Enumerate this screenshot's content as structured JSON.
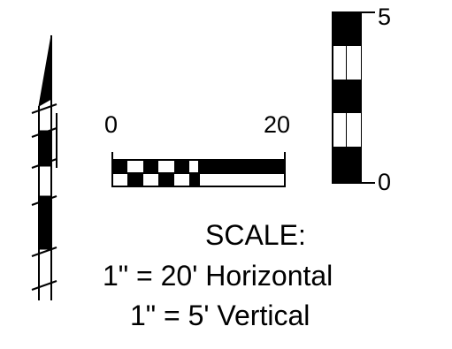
{
  "horizontal_bar": {
    "start_label": "0",
    "end_label": "20"
  },
  "vertical_bar": {
    "top_label": "5",
    "bottom_label": "0"
  },
  "legend": {
    "title": "SCALE:",
    "horizontal_text": "1\" = 20' Horizontal",
    "vertical_text": "1\" = 5' Vertical"
  },
  "colors": {
    "ink": "#000000",
    "paper": "#ffffff"
  }
}
